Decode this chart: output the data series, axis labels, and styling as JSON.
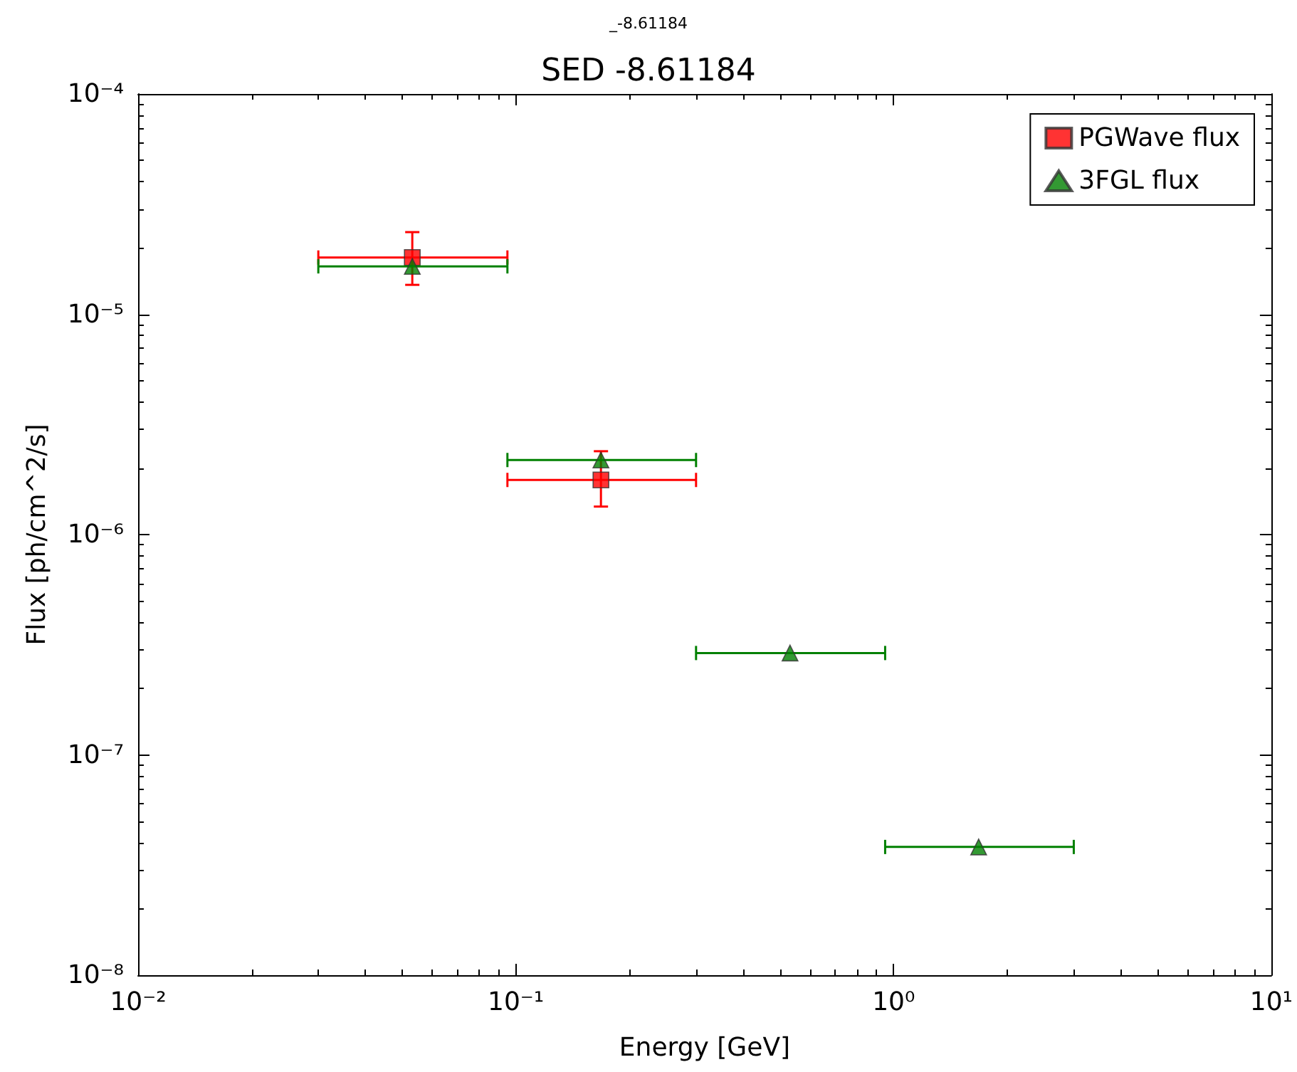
{
  "chart_data": {
    "type": "scatter",
    "title": "SED -8.61184",
    "subtitle": "_-8.61184",
    "xlabel": "Energy [GeV]",
    "ylabel": "Flux [ph/cm^2/s]",
    "log": "xy",
    "legend": "top right",
    "xlim": [
      0.01,
      10
    ],
    "ylim": [
      1e-08,
      0.0001
    ],
    "xticks": [
      {
        "value": 0.01,
        "label": "10⁻²"
      },
      {
        "value": 0.1,
        "label": "10⁻¹"
      },
      {
        "value": 1,
        "label": "10⁰"
      },
      {
        "value": 10,
        "label": "10¹"
      }
    ],
    "yticks": [
      {
        "value": 1e-08,
        "label": "10⁻⁸"
      },
      {
        "value": 1e-07,
        "label": "10⁻⁷"
      },
      {
        "value": 1e-06,
        "label": "10⁻⁶"
      },
      {
        "value": 1e-05,
        "label": "10⁻⁵"
      },
      {
        "value": 0.0001,
        "label": "10⁻⁴"
      }
    ],
    "series": [
      {
        "name": "PGWave flux",
        "color": "#ff0000",
        "marker": "square",
        "x": [
          0.0532,
          0.168
        ],
        "values": [
          1.81e-05,
          1.77e-06
        ],
        "errors": [
          [
            1.36e-05,
            2.36e-05
          ],
          [
            1.34e-06,
            2.39e-06
          ]
        ],
        "xerrors": [
          [
            0.03,
            0.095
          ],
          [
            0.095,
            0.3
          ]
        ]
      },
      {
        "name": "3FGL flux",
        "color": "#008000",
        "marker": "triangle",
        "x": [
          0.0532,
          0.168,
          0.532,
          1.68
        ],
        "values": [
          1.65e-05,
          2.18e-06,
          2.9e-07,
          3.82e-08
        ],
        "xerrors": [
          [
            0.03,
            0.095
          ],
          [
            0.095,
            0.3
          ],
          [
            0.3,
            0.95
          ],
          [
            0.95,
            3.0
          ]
        ]
      }
    ]
  }
}
